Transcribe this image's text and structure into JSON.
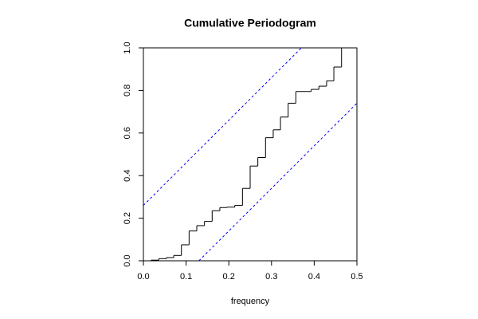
{
  "chart_data": {
    "type": "step",
    "title": "Cumulative Periodogram",
    "x_label": "frequency",
    "x": [
      0,
      0.018,
      0.036,
      0.054,
      0.071,
      0.089,
      0.107,
      0.125,
      0.143,
      0.161,
      0.179,
      0.196,
      0.214,
      0.232,
      0.25,
      0.268,
      0.286,
      0.304,
      0.321,
      0.339,
      0.357,
      0.375,
      0.393,
      0.411,
      0.429,
      0.446,
      0.464
    ],
    "values": [
      0,
      0.003,
      0.01,
      0.015,
      0.025,
      0.075,
      0.14,
      0.165,
      0.185,
      0.235,
      0.25,
      0.252,
      0.26,
      0.34,
      0.445,
      0.485,
      0.578,
      0.615,
      0.675,
      0.74,
      0.795,
      0.795,
      0.805,
      0.82,
      0.845,
      0.91,
      1.0
    ],
    "color": "#000000",
    "bands": [
      {
        "x": [
          0,
          0.37
        ],
        "values": [
          0.26,
          1.0
        ],
        "color": "#0000ff"
      },
      {
        "x": [
          0.13,
          0.5
        ],
        "values": [
          0,
          0.74
        ],
        "color": "#0000ff"
      }
    ],
    "xlim": [
      0,
      0.5
    ],
    "ylim": [
      0,
      1
    ],
    "xticks": [
      {
        "value": 0,
        "label": "0.0"
      },
      0.1,
      0.2,
      0.3,
      0.4,
      0.5
    ],
    "yticks": [
      {
        "value": 0,
        "label": "0.0"
      },
      0.2,
      0.4,
      0.6,
      0.8,
      {
        "value": 1,
        "label": "1.0"
      }
    ]
  }
}
